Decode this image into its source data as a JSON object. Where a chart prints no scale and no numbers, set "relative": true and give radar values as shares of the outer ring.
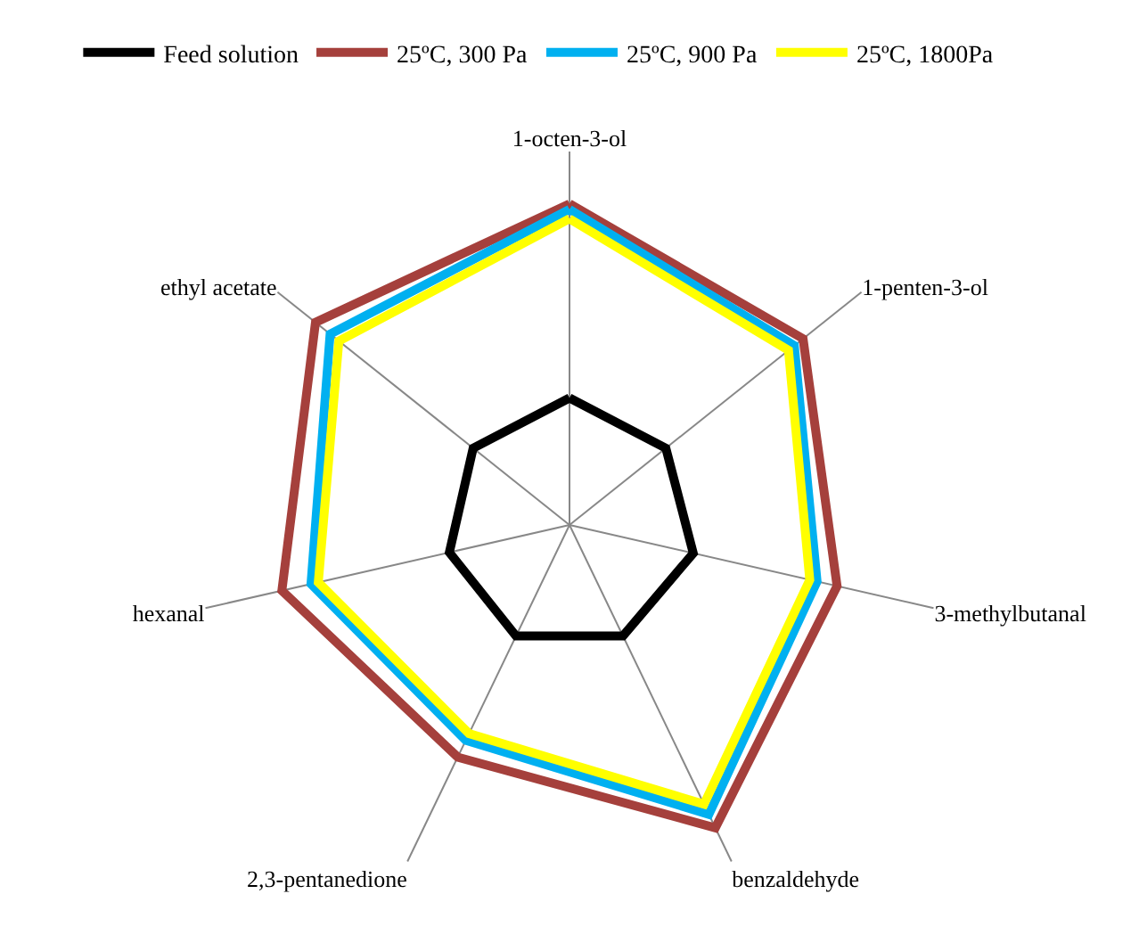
{
  "chart_data": {
    "type": "radar",
    "relative": true,
    "grid": "x",
    "legend": "top left",
    "marker": "none",
    "line_style": "solid",
    "categories": [
      "1-octen-3-ol",
      "1-penten-3-ol",
      "3-methylbutanal",
      "benzaldehyde",
      "2,3-pentanedione",
      "hexanal",
      "ethyl acetate"
    ],
    "series": [
      {
        "name": "Feed solution",
        "color": "#000000",
        "values": [
          0.34,
          0.33,
          0.34,
          0.33,
          0.33,
          0.33,
          0.33
        ]
      },
      {
        "name": "25ºC, 300 Pa",
        "color": "#a5403c",
        "values": [
          0.86,
          0.8,
          0.735,
          0.9,
          0.69,
          0.79,
          0.87
        ]
      },
      {
        "name": "25ºC, 900 Pa",
        "color": "#00b0f0",
        "values": [
          0.845,
          0.77,
          0.68,
          0.86,
          0.64,
          0.71,
          0.82
        ]
      },
      {
        "name": "25ºC, 1800Pa",
        "color": "#ffff00",
        "values": [
          0.82,
          0.75,
          0.66,
          0.83,
          0.62,
          0.69,
          0.79
        ]
      }
    ]
  }
}
